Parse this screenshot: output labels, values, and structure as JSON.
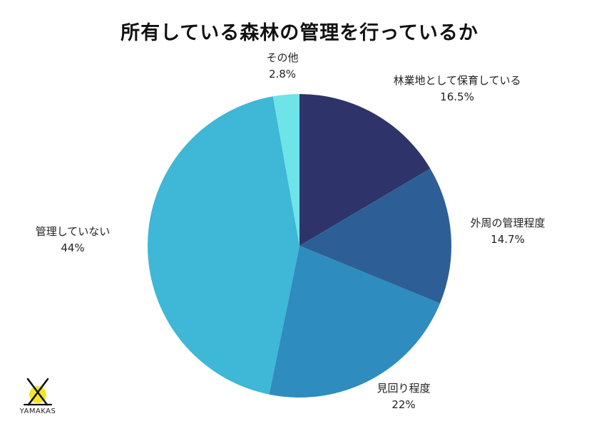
{
  "header": {
    "title": "所有している森林の管理を行っているか"
  },
  "brand": {
    "logo_text": "YAMAKAS",
    "logo_color": "#f5e52a"
  },
  "chart_data": {
    "type": "pie",
    "title": "所有している森林の管理を行っているか",
    "start_angle_deg": 0,
    "direction": "clockwise",
    "slices": [
      {
        "label": "林業地として保育している",
        "value": 16.5,
        "display": "16.5%",
        "color": "#2e3369"
      },
      {
        "label": "外周の管理程度",
        "value": 14.7,
        "display": "14.7%",
        "color": "#2d5f96"
      },
      {
        "label": "見回り程度",
        "value": 22,
        "display": "22%",
        "color": "#2e8cbf"
      },
      {
        "label": "管理していない",
        "value": 44,
        "display": "44%",
        "color": "#3fb7d6"
      },
      {
        "label": "その他",
        "value": 2.8,
        "display": "2.8%",
        "color": "#6ee3e8"
      }
    ]
  }
}
